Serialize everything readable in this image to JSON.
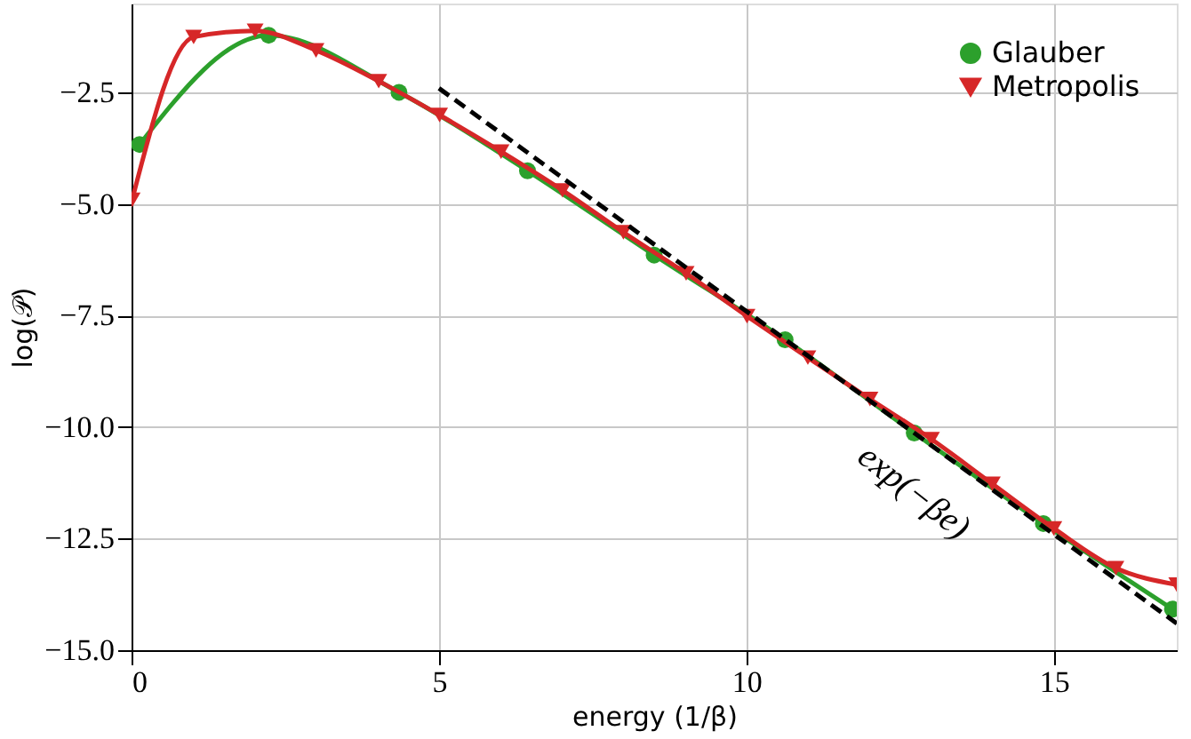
{
  "chart_data": {
    "type": "line",
    "xlabel": "energy (1/β)",
    "ylabel": "log(𝒫)",
    "xlim": [
      0,
      17
    ],
    "ylim": [
      -15,
      -0.5
    ],
    "xticks": [
      0,
      5,
      10,
      15
    ],
    "yticks": [
      {
        "value": -15,
        "label": "−15.0"
      },
      {
        "value": -12.5,
        "label": "−12.5"
      },
      {
        "value": -10,
        "label": "−10.0"
      },
      {
        "value": -7.5,
        "label": "−7.5"
      },
      {
        "value": -5,
        "label": "−5.0"
      },
      {
        "value": -2.5,
        "label": "−2.5"
      }
    ],
    "grid": true,
    "legend": "top right",
    "line_style": "solid",
    "series": [
      {
        "name": "Glauber",
        "color": "#2ca02c",
        "marker": "circle",
        "x": [
          0.13,
          2.23,
          4.35,
          6.44,
          8.5,
          10.63,
          12.73,
          14.83,
          16.93
        ],
        "values": [
          -3.66,
          -1.21,
          -2.49,
          -4.25,
          -6.14,
          -8.04,
          -10.13,
          -12.16,
          -14.08
        ]
      },
      {
        "name": "Metropolis",
        "color": "#d62728",
        "marker": "triangle",
        "x": [
          0.01,
          1.01,
          2.01,
          3.0,
          4.02,
          5.01,
          6.01,
          7.01,
          8.0,
          9.02,
          10.01,
          11.0,
          12.01,
          13.01,
          14.0,
          15.0,
          16.01,
          17.0
        ],
        "values": [
          -4.9,
          -1.25,
          -1.11,
          -1.55,
          -2.24,
          -3.0,
          -3.82,
          -4.69,
          -5.63,
          -6.55,
          -7.51,
          -8.44,
          -9.37,
          -10.27,
          -11.27,
          -12.27,
          -13.16,
          -13.53
        ]
      },
      {
        "color": "#000000",
        "marker": "none",
        "line_style": "dashed",
        "x": [
          5,
          17
        ],
        "values": [
          -2.4,
          -14.4
        ]
      }
    ],
    "annotations": [
      "exp(−βe)"
    ]
  }
}
